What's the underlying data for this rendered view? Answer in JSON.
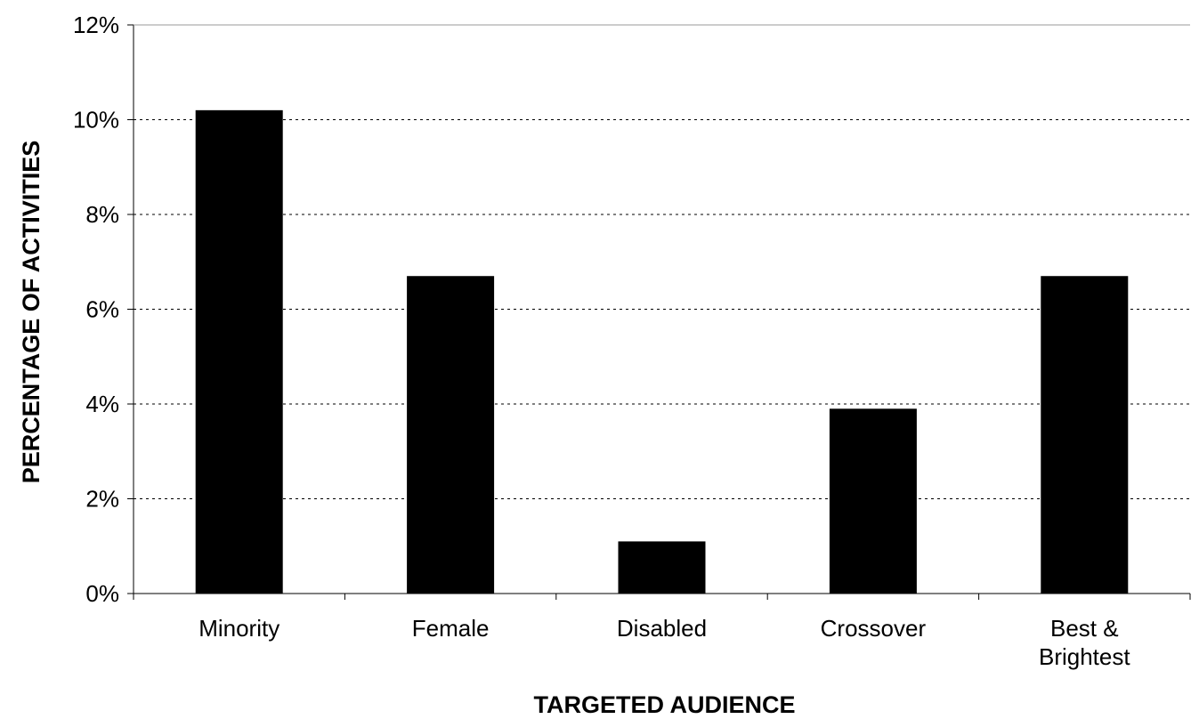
{
  "chart_data": {
    "type": "bar",
    "categories": [
      "Minority",
      "Female",
      "Disabled",
      "Crossover",
      "Best & Brightest"
    ],
    "values": [
      10.2,
      6.7,
      1.1,
      3.9,
      6.7
    ],
    "xlabel": "TARGETED AUDIENCE",
    "ylabel": "PERCENTAGE OF ACTIVITIES",
    "ylim": [
      0,
      12
    ],
    "yticks": [
      0,
      2,
      4,
      6,
      8,
      10,
      12
    ],
    "ytick_format": "%",
    "grid": "horizontal dotted",
    "legend": "none",
    "bar_color": "#000000"
  }
}
